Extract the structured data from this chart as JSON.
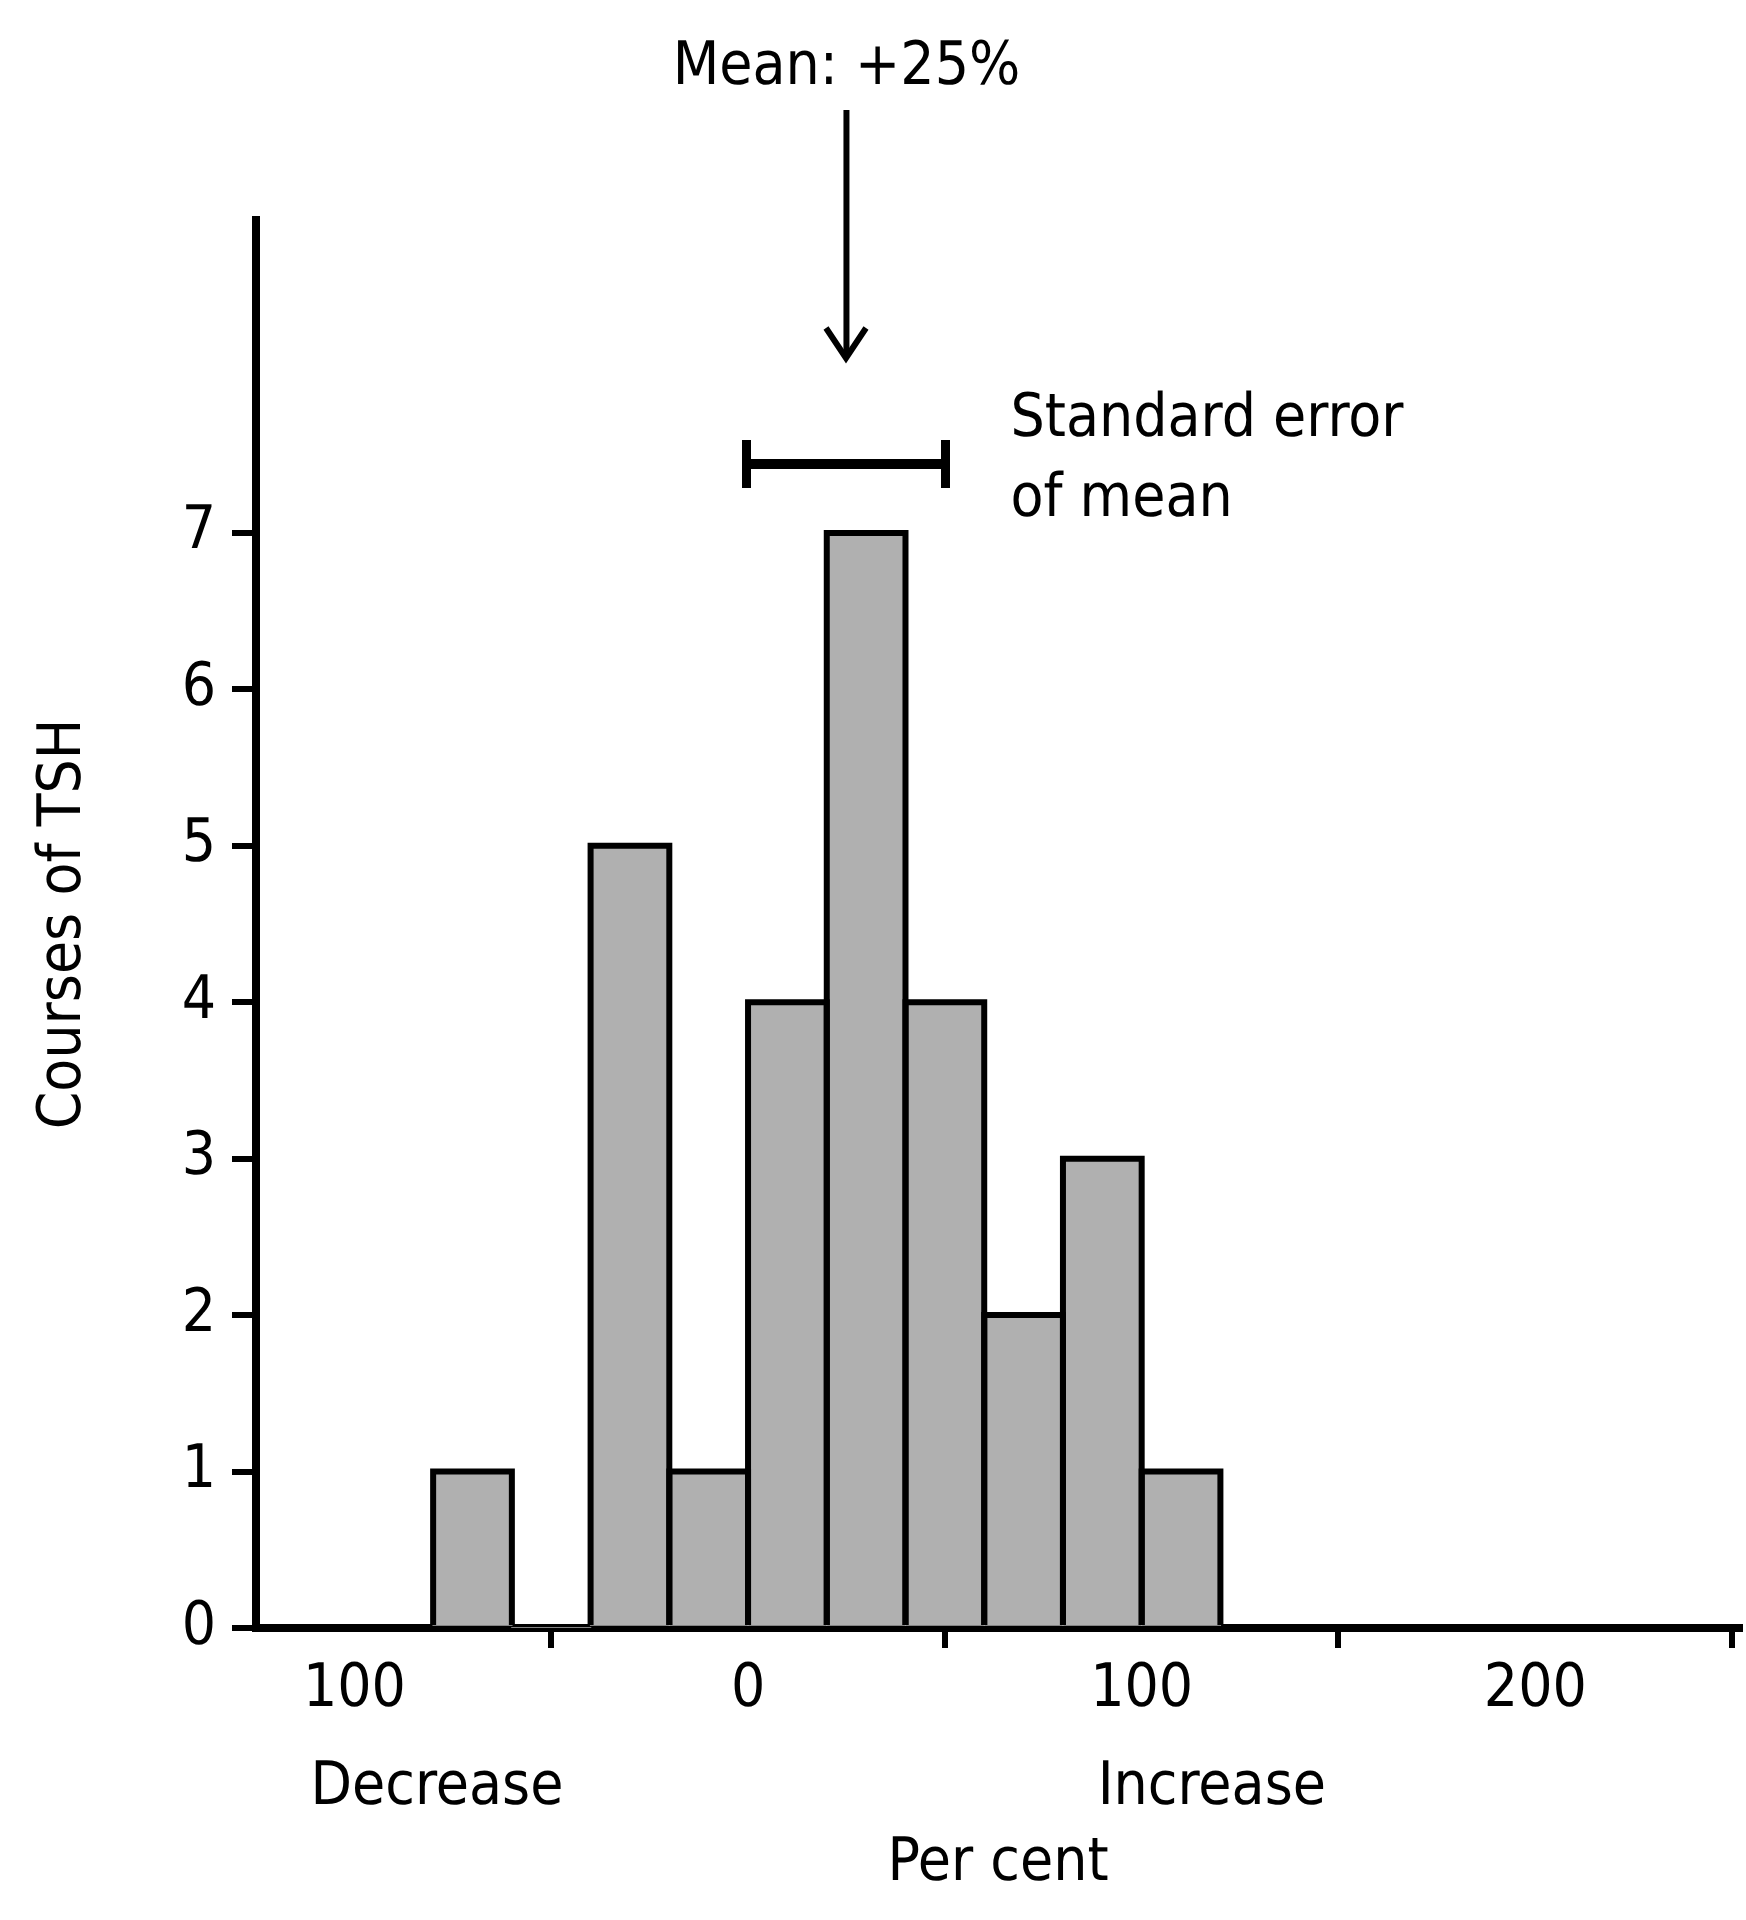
{
  "chart_data": {
    "type": "histogram",
    "xlabel": "Per cent",
    "ylabel": "Courses of TSH",
    "bins": [
      -80,
      -60,
      -40,
      -20,
      0,
      20,
      40,
      60,
      80,
      100,
      120
    ],
    "values": [
      1,
      0,
      5,
      1,
      4,
      7,
      4,
      2,
      3,
      1
    ],
    "color": "#b0b0b0",
    "xlim": [
      -125,
      252
    ],
    "ylim": [
      0,
      9
    ],
    "xticks": [
      {
        "value": -100,
        "label": "100"
      },
      0,
      100,
      200
    ],
    "yticks": [
      0,
      1,
      2,
      3,
      4,
      5,
      6,
      7
    ],
    "ref_lines": [
      {
        "axis": "x",
        "value": 25,
        "label": "Mean: +25%",
        "color": "#000000"
      }
    ],
    "annotations": [
      "Standard error of mean",
      "Decrease",
      "Increase"
    ],
    "grid": false,
    "legend": false
  }
}
